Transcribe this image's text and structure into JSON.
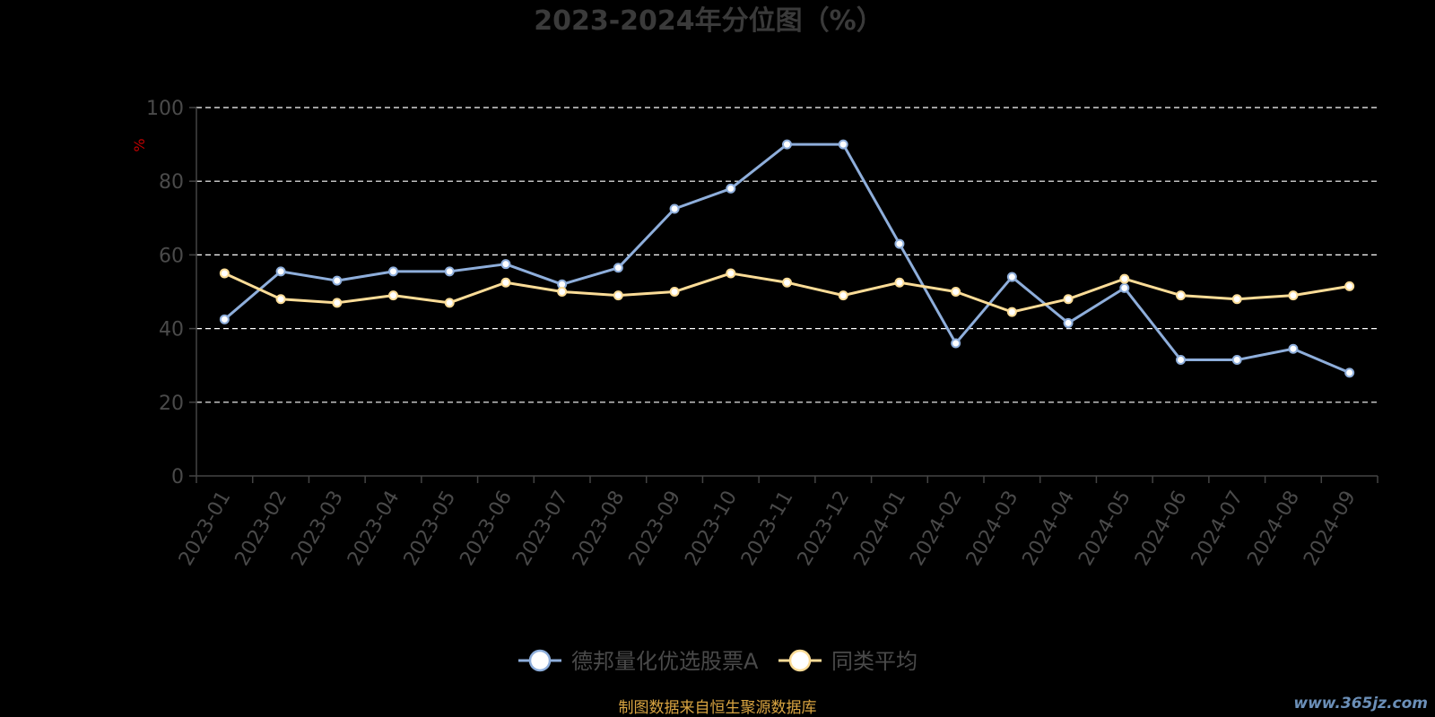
{
  "chart_data": {
    "type": "line",
    "title": "2023-2024年分位图（%）",
    "ylabel": "%",
    "xlabel": "",
    "ylim": [
      0,
      100
    ],
    "yticks": [
      "0",
      "20",
      "40",
      "60",
      "80",
      "100"
    ],
    "grid": true,
    "legend_position": "bottom",
    "categories": [
      "2023-01",
      "2023-02",
      "2023-03",
      "2023-04",
      "2023-05",
      "2023-06",
      "2023-07",
      "2023-08",
      "2023-09",
      "2023-10",
      "2023-11",
      "2023-12",
      "2024-01",
      "2024-02",
      "2024-03",
      "2024-04",
      "2024-05",
      "2024-06",
      "2024-07",
      "2024-08",
      "2024-09"
    ],
    "series": [
      {
        "name": "德邦量化优选股票A",
        "color": "#8eaedb",
        "values": [
          42.5,
          55.5,
          53.0,
          55.5,
          55.5,
          57.5,
          52.0,
          56.5,
          72.5,
          78.0,
          90.0,
          90.0,
          63.0,
          36.0,
          54.0,
          41.5,
          51.0,
          31.5,
          31.5,
          34.5,
          28.0
        ]
      },
      {
        "name": "同类平均",
        "color": "#fbdc97",
        "values": [
          55.0,
          48.0,
          47.0,
          49.0,
          47.0,
          52.5,
          50.0,
          49.0,
          50.0,
          55.0,
          52.5,
          49.0,
          52.5,
          50.0,
          44.5,
          48.0,
          53.5,
          49.0,
          48.0,
          49.0,
          51.5
        ]
      }
    ]
  },
  "footer": {
    "source": "制图数据来自恒生聚源数据库",
    "watermark": "www.365jz.com"
  }
}
